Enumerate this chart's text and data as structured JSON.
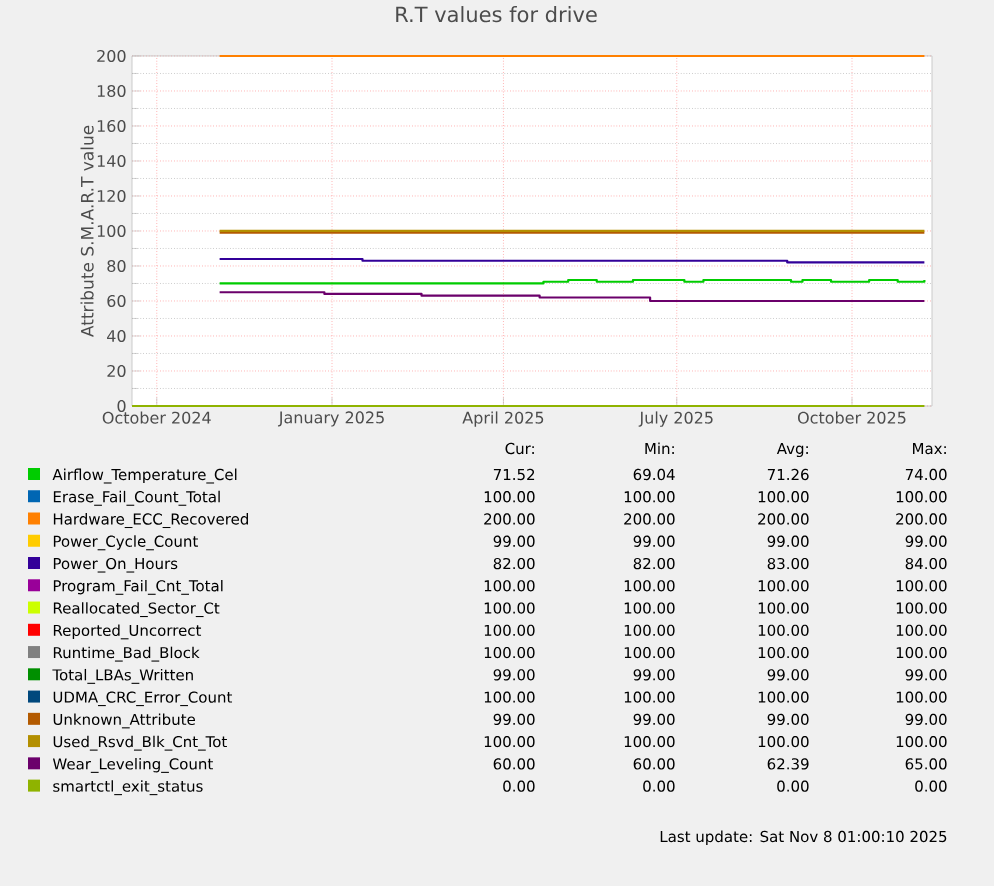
{
  "chart_data": {
    "type": "step",
    "title": "R.T values for drive",
    "ylabel": "Attribute S.M.A.R.T value",
    "xlim": [
      "2024-09-18",
      "2025-11-12"
    ],
    "ylim": [
      0,
      200
    ],
    "xticks": [
      {
        "value": "2024-10-01",
        "label": "October 2024"
      },
      {
        "value": "2025-01-01",
        "label": "January 2025"
      },
      {
        "value": "2025-04-01",
        "label": "April 2025"
      },
      {
        "value": "2025-07-01",
        "label": "July 2025"
      },
      {
        "value": "2025-10-01",
        "label": "October 2025"
      }
    ],
    "yticks": [
      0,
      20,
      40,
      60,
      80,
      100,
      120,
      140,
      160,
      180,
      200
    ],
    "grid": true,
    "legend": "bottom",
    "series": [
      {
        "name": "Airflow_Temperature_Cel",
        "color": "#00cc00",
        "x": [
          "2024-11-03",
          "2025-04-22",
          "2025-05-05",
          "2025-05-20",
          "2025-06-08",
          "2025-07-05",
          "2025-07-15",
          "2025-08-30",
          "2025-09-05",
          "2025-09-20",
          "2025-10-10",
          "2025-10-25",
          "2025-11-08"
        ],
        "values": [
          70,
          71,
          72,
          71,
          72,
          71,
          72,
          71,
          72,
          71,
          72,
          71,
          72
        ]
      },
      {
        "name": "Erase_Fail_Count_Total",
        "color": "#0066b3",
        "values": [
          null,
          null
        ]
      },
      {
        "name": "Hardware_ECC_Recovered",
        "color": "#ff8000",
        "x": [
          "2024-11-03",
          "2025-11-08"
        ],
        "values": [
          200,
          200
        ]
      },
      {
        "name": "Power_Cycle_Count",
        "color": "#ffcc00",
        "values": [
          null,
          null
        ]
      },
      {
        "name": "Power_On_Hours",
        "color": "#330099",
        "x": [
          "2024-11-03",
          "2025-01-17",
          "2025-08-28",
          "2025-11-08"
        ],
        "values": [
          84,
          83,
          82,
          82
        ]
      },
      {
        "name": "Program_Fail_Cnt_Total",
        "color": "#990099",
        "values": [
          null,
          null
        ]
      },
      {
        "name": "Reallocated_Sector_Ct",
        "color": "#ccff00",
        "values": [
          null,
          null
        ]
      },
      {
        "name": "Reported_Uncorrect",
        "color": "#ff0000",
        "values": [
          null,
          null
        ]
      },
      {
        "name": "Runtime_Bad_Block",
        "color": "#808080",
        "values": [
          null,
          null
        ]
      },
      {
        "name": "Total_LBAs_Written",
        "color": "#008f00",
        "values": [
          null,
          null
        ]
      },
      {
        "name": "UDMA_CRC_Error_Count",
        "color": "#00487d",
        "values": [
          null,
          null
        ]
      },
      {
        "name": "Unknown_Attribute",
        "color": "#b35a00",
        "x": [
          "2024-11-03",
          "2025-11-08"
        ],
        "values": [
          99,
          99
        ]
      },
      {
        "name": "Used_Rsvd_Blk_Cnt_Tot",
        "color": "#b38f00",
        "x": [
          "2024-11-03",
          "2025-11-08"
        ],
        "values": [
          100,
          100
        ]
      },
      {
        "name": "Wear_Leveling_Count",
        "color": "#6b006b",
        "x": [
          "2024-11-03",
          "2024-12-28",
          "2025-02-17",
          "2025-04-20",
          "2025-06-17",
          "2025-11-08"
        ],
        "values": [
          65,
          64,
          63,
          62,
          60,
          60
        ]
      },
      {
        "name": "smartctl_exit_status",
        "color": "#8fb300",
        "x": [
          "2024-09-18",
          "2025-11-08"
        ],
        "values": [
          0,
          0
        ]
      }
    ],
    "annotations": [
      "Cur:",
      "Min:",
      "Avg:",
      "Max:",
      "71.52",
      "69.04",
      "71.26",
      "74.00",
      "100.00",
      "100.00",
      "100.00",
      "100.00",
      "200.00",
      "200.00",
      "200.00",
      "200.00",
      "99.00",
      "99.00",
      "99.00",
      "99.00",
      "82.00",
      "82.00",
      "83.00",
      "84.00",
      "100.00",
      "100.00",
      "100.00",
      "100.00",
      "100.00",
      "100.00",
      "100.00",
      "100.00",
      "100.00",
      "100.00",
      "100.00",
      "100.00",
      "100.00",
      "100.00",
      "100.00",
      "100.00",
      "99.00",
      "99.00",
      "99.00",
      "99.00",
      "100.00",
      "100.00",
      "100.00",
      "100.00",
      "99.00",
      "99.00",
      "99.00",
      "99.00",
      "100.00",
      "100.00",
      "100.00",
      "100.00",
      "60.00",
      "60.00",
      "62.39",
      "65.00",
      "0.00",
      "0.00",
      "0.00",
      "0.00",
      "Last update: Sat Nov  8 01:00:10 2025"
    ]
  }
}
